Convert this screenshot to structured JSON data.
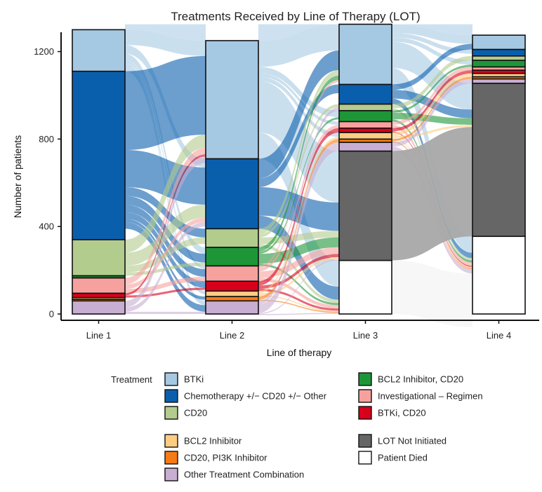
{
  "chart_data": {
    "type": "alluvial",
    "title": "Treatments Received by Line of Therapy (LOT)",
    "xlabel": "Line of therapy",
    "ylabel": "Number of patients",
    "ylim": [
      0,
      1290
    ],
    "yticks": [
      0,
      400,
      800,
      1200
    ],
    "categories": [
      "Line 1",
      "Line 2",
      "Line 3",
      "Line 4"
    ],
    "legend_title": "Treatment",
    "series": [
      {
        "name": "BTKi",
        "color": "#a6c9e3",
        "values": [
          190,
          540,
          275,
          65
        ]
      },
      {
        "name": "Chemotherapy +/− CD20 +/− Other",
        "color": "#0a5fad",
        "values": [
          770,
          320,
          90,
          30
        ]
      },
      {
        "name": "CD20",
        "color": "#b2cc8e",
        "values": [
          165,
          85,
          30,
          20
        ]
      },
      {
        "name": "BCL2 Inhibitor, CD20",
        "color": "#1e9638",
        "values": [
          10,
          85,
          50,
          30
        ]
      },
      {
        "name": "Investigational – Regimen",
        "color": "#f7a19e",
        "values": [
          70,
          70,
          30,
          15
        ]
      },
      {
        "name": "BTKi, CD20",
        "color": "#d9001b",
        "values": [
          20,
          45,
          20,
          15
        ]
      },
      {
        "name": "BCL2 Inhibitor",
        "color": "#fdcd82",
        "values": [
          8,
          25,
          30,
          15
        ]
      },
      {
        "name": "CD20, PI3K Inhibitor",
        "color": "#f57b16",
        "values": [
          7,
          20,
          15,
          10
        ]
      },
      {
        "name": "Other Treatment Combination",
        "color": "#c8aed2",
        "values": [
          60,
          60,
          40,
          20
        ]
      },
      {
        "name": "LOT Not Initiated",
        "color": "#666666",
        "values": [
          0,
          0,
          500,
          700
        ]
      },
      {
        "name": "Patient Died",
        "color": "#ffffff",
        "values": [
          0,
          0,
          245,
          355
        ]
      }
    ],
    "stack_order_bottom_to_top": [
      "Patient Died",
      "LOT Not Initiated",
      "Other Treatment Combination",
      "CD20, PI3K Inhibitor",
      "BCL2 Inhibitor",
      "BTKi, CD20",
      "Investigational – Regimen",
      "BCL2 Inhibitor, CD20",
      "CD20",
      "Chemotherapy +/− CD20 +/− Other",
      "BTKi"
    ],
    "legend_order": [
      "BTKi",
      "Chemotherapy +/− CD20 +/− Other",
      "CD20",
      "BCL2 Inhibitor",
      "CD20, PI3K Inhibitor",
      "Other Treatment Combination",
      "BCL2 Inhibitor, CD20",
      "Investigational – Regimen",
      "BTKi, CD20",
      "LOT Not Initiated",
      "Patient Died"
    ],
    "flows": [
      {
        "from_line": 1,
        "to_line": 2,
        "from": "BTKi",
        "to": "BTKi",
        "value": 70
      },
      {
        "from_line": 1,
        "to_line": 2,
        "from": "BTKi",
        "to": "Chemotherapy +/− CD20 +/− Other",
        "value": 40
      },
      {
        "from_line": 1,
        "to_line": 2,
        "from": "BTKi",
        "to": "BCL2 Inhibitor, CD20",
        "value": 30
      },
      {
        "from_line": 1,
        "to_line": 2,
        "from": "BTKi",
        "to": "BCL2 Inhibitor",
        "value": 15
      },
      {
        "from_line": 1,
        "to_line": 2,
        "from": "BTKi",
        "to": "Investigational – Regimen",
        "value": 15
      },
      {
        "from_line": 1,
        "to_line": 2,
        "from": "BTKi",
        "to": "Other Treatment Combination",
        "value": 20
      },
      {
        "from_line": 1,
        "to_line": 2,
        "from": "Chemotherapy +/− CD20 +/− Other",
        "to": "BTKi",
        "value": 360
      },
      {
        "from_line": 1,
        "to_line": 2,
        "from": "Chemotherapy +/− CD20 +/− Other",
        "to": "Chemotherapy +/− CD20 +/− Other",
        "value": 170
      },
      {
        "from_line": 1,
        "to_line": 2,
        "from": "Chemotherapy +/− CD20 +/− Other",
        "to": "CD20",
        "value": 40
      },
      {
        "from_line": 1,
        "to_line": 2,
        "from": "Chemotherapy +/− CD20 +/− Other",
        "to": "BCL2 Inhibitor, CD20",
        "value": 40
      },
      {
        "from_line": 1,
        "to_line": 2,
        "from": "Chemotherapy +/− CD20 +/− Other",
        "to": "Investigational – Regimen",
        "value": 35
      },
      {
        "from_line": 1,
        "to_line": 2,
        "from": "Chemotherapy +/− CD20 +/− Other",
        "to": "BTKi, CD20",
        "value": 30
      },
      {
        "from_line": 1,
        "to_line": 2,
        "from": "Chemotherapy +/− CD20 +/− Other",
        "to": "CD20, PI3K Inhibitor",
        "value": 15
      },
      {
        "from_line": 1,
        "to_line": 2,
        "from": "Chemotherapy +/− CD20 +/− Other",
        "to": "Other Treatment Combination",
        "value": 30
      },
      {
        "from_line": 1,
        "to_line": 2,
        "from": "CD20",
        "to": "BTKi",
        "value": 60
      },
      {
        "from_line": 1,
        "to_line": 2,
        "from": "CD20",
        "to": "Chemotherapy +/− CD20 +/− Other",
        "value": 60
      },
      {
        "from_line": 1,
        "to_line": 2,
        "from": "CD20",
        "to": "CD20",
        "value": 30
      },
      {
        "from_line": 1,
        "to_line": 2,
        "from": "CD20",
        "to": "BCL2 Inhibitor, CD20",
        "value": 15
      },
      {
        "from_line": 1,
        "to_line": 2,
        "from": "Investigational – Regimen",
        "to": "BTKi",
        "value": 30
      },
      {
        "from_line": 1,
        "to_line": 2,
        "from": "Investigational – Regimen",
        "to": "Chemotherapy +/− CD20 +/− Other",
        "value": 20
      },
      {
        "from_line": 1,
        "to_line": 2,
        "from": "Investigational – Regimen",
        "to": "Investigational – Regimen",
        "value": 20
      },
      {
        "from_line": 1,
        "to_line": 2,
        "from": "BTKi, CD20",
        "to": "BTKi",
        "value": 10
      },
      {
        "from_line": 1,
        "to_line": 2,
        "from": "BTKi, CD20",
        "to": "BTKi, CD20",
        "value": 10
      },
      {
        "from_line": 1,
        "to_line": 2,
        "from": "Other Treatment Combination",
        "to": "BTKi",
        "value": 30
      },
      {
        "from_line": 1,
        "to_line": 2,
        "from": "Other Treatment Combination",
        "to": "Chemotherapy +/− CD20 +/− Other",
        "value": 20
      },
      {
        "from_line": 1,
        "to_line": 2,
        "from": "Other Treatment Combination",
        "to": "Other Treatment Combination",
        "value": 10
      },
      {
        "from_line": 2,
        "to_line": 3,
        "from": "BTKi",
        "to": "BTKi",
        "value": 120
      },
      {
        "from_line": 2,
        "to_line": 3,
        "from": "BTKi",
        "to": "BCL2 Inhibitor, CD20",
        "value": 30
      },
      {
        "from_line": 2,
        "to_line": 3,
        "from": "BTKi",
        "to": "BCL2 Inhibitor",
        "value": 20
      },
      {
        "from_line": 2,
        "to_line": 3,
        "from": "BTKi",
        "to": "Investigational – Regimen",
        "value": 15
      },
      {
        "from_line": 2,
        "to_line": 3,
        "from": "BTKi",
        "to": "LOT Not Initiated",
        "value": 235
      },
      {
        "from_line": 2,
        "to_line": 3,
        "from": "BTKi",
        "to": "Patient Died",
        "value": 120
      },
      {
        "from_line": 2,
        "to_line": 3,
        "from": "Chemotherapy +/− CD20 +/− Other",
        "to": "BTKi",
        "value": 90
      },
      {
        "from_line": 2,
        "to_line": 3,
        "from": "Chemotherapy +/− CD20 +/− Other",
        "to": "Chemotherapy +/− CD20 +/− Other",
        "value": 40
      },
      {
        "from_line": 2,
        "to_line": 3,
        "from": "Chemotherapy +/− CD20 +/− Other",
        "to": "LOT Not Initiated",
        "value": 130
      },
      {
        "from_line": 2,
        "to_line": 3,
        "from": "Chemotherapy +/− CD20 +/− Other",
        "to": "Patient Died",
        "value": 60
      },
      {
        "from_line": 2,
        "to_line": 3,
        "from": "CD20",
        "to": "BTKi",
        "value": 25
      },
      {
        "from_line": 2,
        "to_line": 3,
        "from": "CD20",
        "to": "CD20",
        "value": 15
      },
      {
        "from_line": 2,
        "to_line": 3,
        "from": "CD20",
        "to": "LOT Not Initiated",
        "value": 30
      },
      {
        "from_line": 2,
        "to_line": 3,
        "from": "CD20",
        "to": "Patient Died",
        "value": 15
      },
      {
        "from_line": 2,
        "to_line": 3,
        "from": "BCL2 Inhibitor, CD20",
        "to": "BTKi",
        "value": 20
      },
      {
        "from_line": 2,
        "to_line": 3,
        "from": "BCL2 Inhibitor, CD20",
        "to": "BCL2 Inhibitor, CD20",
        "value": 10
      },
      {
        "from_line": 2,
        "to_line": 3,
        "from": "BCL2 Inhibitor, CD20",
        "to": "LOT Not Initiated",
        "value": 45
      },
      {
        "from_line": 2,
        "to_line": 3,
        "from": "BCL2 Inhibitor, CD20",
        "to": "Patient Died",
        "value": 10
      },
      {
        "from_line": 2,
        "to_line": 3,
        "from": "Investigational – Regimen",
        "to": "BTKi",
        "value": 10
      },
      {
        "from_line": 2,
        "to_line": 3,
        "from": "Investigational – Regimen",
        "to": "Investigational – Regimen",
        "value": 15
      },
      {
        "from_line": 2,
        "to_line": 3,
        "from": "Investigational – Regimen",
        "to": "LOT Not Initiated",
        "value": 30
      },
      {
        "from_line": 2,
        "to_line": 3,
        "from": "Investigational – Regimen",
        "to": "Patient Died",
        "value": 15
      },
      {
        "from_line": 2,
        "to_line": 3,
        "from": "BTKi, CD20",
        "to": "BTKi, CD20",
        "value": 20
      },
      {
        "from_line": 2,
        "to_line": 3,
        "from": "BTKi, CD20",
        "to": "LOT Not Initiated",
        "value": 15
      },
      {
        "from_line": 2,
        "to_line": 3,
        "from": "BTKi, CD20",
        "to": "Patient Died",
        "value": 10
      },
      {
        "from_line": 2,
        "to_line": 3,
        "from": "BCL2 Inhibitor",
        "to": "BCL2 Inhibitor",
        "value": 10
      },
      {
        "from_line": 2,
        "to_line": 3,
        "from": "BCL2 Inhibitor",
        "to": "LOT Not Initiated",
        "value": 10
      },
      {
        "from_line": 2,
        "to_line": 3,
        "from": "BCL2 Inhibitor",
        "to": "Patient Died",
        "value": 5
      },
      {
        "from_line": 2,
        "to_line": 3,
        "from": "CD20, PI3K Inhibitor",
        "to": "CD20, PI3K Inhibitor",
        "value": 15
      },
      {
        "from_line": 2,
        "to_line": 3,
        "from": "CD20, PI3K Inhibitor",
        "to": "Patient Died",
        "value": 5
      },
      {
        "from_line": 2,
        "to_line": 3,
        "from": "Other Treatment Combination",
        "to": "Other Treatment Combination",
        "value": 40
      },
      {
        "from_line": 2,
        "to_line": 3,
        "from": "Other Treatment Combination",
        "to": "LOT Not Initiated",
        "value": 5
      },
      {
        "from_line": 2,
        "to_line": 3,
        "from": "Other Treatment Combination",
        "to": "Patient Died",
        "value": 5
      },
      {
        "from_line": 2,
        "to_line": 3,
        "from": "Other Treatment Combination",
        "to": "CD20",
        "value": 15
      },
      {
        "from_line": 3,
        "to_line": 4,
        "from": "BTKi",
        "to": "BTKi",
        "value": 40
      },
      {
        "from_line": 3,
        "to_line": 4,
        "from": "BTKi",
        "to": "Chemotherapy +/− CD20 +/− Other",
        "value": 20
      },
      {
        "from_line": 3,
        "to_line": 4,
        "from": "BTKi",
        "to": "BCL2 Inhibitor, CD20",
        "value": 20
      },
      {
        "from_line": 3,
        "to_line": 4,
        "from": "BTKi",
        "to": "LOT Not Initiated",
        "value": 120
      },
      {
        "from_line": 3,
        "to_line": 4,
        "from": "BTKi",
        "to": "Patient Died",
        "value": 75
      },
      {
        "from_line": 3,
        "to_line": 4,
        "from": "Chemotherapy +/− CD20 +/− Other",
        "to": "BTKi",
        "value": 25
      },
      {
        "from_line": 3,
        "to_line": 4,
        "from": "Chemotherapy +/− CD20 +/− Other",
        "to": "LOT Not Initiated",
        "value": 40
      },
      {
        "from_line": 3,
        "to_line": 4,
        "from": "Chemotherapy +/− CD20 +/− Other",
        "to": "Patient Died",
        "value": 25
      },
      {
        "from_line": 3,
        "to_line": 4,
        "from": "CD20",
        "to": "CD20",
        "value": 20
      },
      {
        "from_line": 3,
        "to_line": 4,
        "from": "CD20",
        "to": "Patient Died",
        "value": 10
      },
      {
        "from_line": 3,
        "to_line": 4,
        "from": "BCL2 Inhibitor, CD20",
        "to": "BCL2 Inhibitor, CD20",
        "value": 10
      },
      {
        "from_line": 3,
        "to_line": 4,
        "from": "BCL2 Inhibitor, CD20",
        "to": "LOT Not Initiated",
        "value": 30
      },
      {
        "from_line": 3,
        "to_line": 4,
        "from": "BCL2 Inhibitor, CD20",
        "to": "Patient Died",
        "value": 10
      },
      {
        "from_line": 3,
        "to_line": 4,
        "from": "Investigational – Regimen",
        "to": "Investigational – Regimen",
        "value": 15
      },
      {
        "from_line": 3,
        "to_line": 4,
        "from": "Investigational – Regimen",
        "to": "Patient Died",
        "value": 15
      },
      {
        "from_line": 3,
        "to_line": 4,
        "from": "BTKi, CD20",
        "to": "BTKi, CD20",
        "value": 15
      },
      {
        "from_line": 3,
        "to_line": 4,
        "from": "BTKi, CD20",
        "to": "Patient Died",
        "value": 5
      },
      {
        "from_line": 3,
        "to_line": 4,
        "from": "BCL2 Inhibitor",
        "to": "BCL2 Inhibitor",
        "value": 15
      },
      {
        "from_line": 3,
        "to_line": 4,
        "from": "BCL2 Inhibitor",
        "to": "LOT Not Initiated",
        "value": 10
      },
      {
        "from_line": 3,
        "to_line": 4,
        "from": "BCL2 Inhibitor",
        "to": "Patient Died",
        "value": 5
      },
      {
        "from_line": 3,
        "to_line": 4,
        "from": "CD20, PI3K Inhibitor",
        "to": "CD20, PI3K Inhibitor",
        "value": 10
      },
      {
        "from_line": 3,
        "to_line": 4,
        "from": "CD20, PI3K Inhibitor",
        "to": "Patient Died",
        "value": 5
      },
      {
        "from_line": 3,
        "to_line": 4,
        "from": "Other Treatment Combination",
        "to": "Other Treatment Combination",
        "value": 20
      },
      {
        "from_line": 3,
        "to_line": 4,
        "from": "Other Treatment Combination",
        "to": "Patient Died",
        "value": 20
      },
      {
        "from_line": 3,
        "to_line": 4,
        "from": "LOT Not Initiated",
        "to": "LOT Not Initiated",
        "value": 500
      },
      {
        "from_line": 3,
        "to_line": 4,
        "from": "Patient Died",
        "to": "Patient Died",
        "value": 245
      }
    ]
  }
}
